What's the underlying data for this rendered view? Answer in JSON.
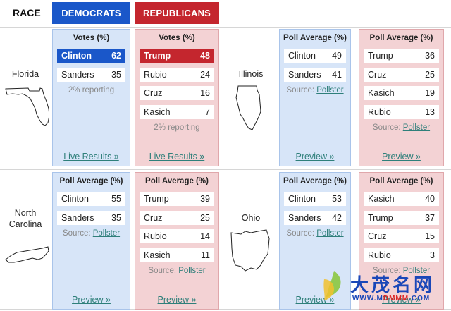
{
  "header": {
    "race": "RACE",
    "democrats": "DEMOCRATS",
    "republicans": "REPUBLICANS"
  },
  "races": {
    "florida": {
      "state": "Florida",
      "dem": {
        "title": "Votes (%)",
        "rows": [
          {
            "name": "Clinton",
            "value": "62"
          },
          {
            "name": "Sanders",
            "value": "35"
          }
        ],
        "note": "2% reporting",
        "link": "Live Results »"
      },
      "rep": {
        "title": "Votes (%)",
        "rows": [
          {
            "name": "Trump",
            "value": "48"
          },
          {
            "name": "Rubio",
            "value": "24"
          },
          {
            "name": "Cruz",
            "value": "16"
          },
          {
            "name": "Kasich",
            "value": "7"
          }
        ],
        "note": "2% reporting",
        "link": "Live Results »"
      }
    },
    "illinois": {
      "state": "Illinois",
      "dem": {
        "title": "Poll Average (%)",
        "rows": [
          {
            "name": "Clinton",
            "value": "49"
          },
          {
            "name": "Sanders",
            "value": "41"
          }
        ],
        "source_prefix": "Source: ",
        "source_link": "Pollster",
        "link": "Preview »"
      },
      "rep": {
        "title": "Poll Average (%)",
        "rows": [
          {
            "name": "Trump",
            "value": "36"
          },
          {
            "name": "Cruz",
            "value": "25"
          },
          {
            "name": "Kasich",
            "value": "19"
          },
          {
            "name": "Rubio",
            "value": "13"
          }
        ],
        "source_prefix": "Source: ",
        "source_link": "Pollster",
        "link": "Preview »"
      }
    },
    "north_carolina": {
      "state_line1": "North",
      "state_line2": "Carolina",
      "dem": {
        "title": "Poll Average (%)",
        "rows": [
          {
            "name": "Clinton",
            "value": "55"
          },
          {
            "name": "Sanders",
            "value": "35"
          }
        ],
        "source_prefix": "Source: ",
        "source_link": "Pollster",
        "link": "Preview »"
      },
      "rep": {
        "title": "Poll Average (%)",
        "rows": [
          {
            "name": "Trump",
            "value": "39"
          },
          {
            "name": "Cruz",
            "value": "25"
          },
          {
            "name": "Rubio",
            "value": "14"
          },
          {
            "name": "Kasich",
            "value": "11"
          }
        ],
        "source_prefix": "Source: ",
        "source_link": "Pollster",
        "link": "Preview »"
      }
    },
    "ohio": {
      "state": "Ohio",
      "dem": {
        "title": "Poll Average (%)",
        "rows": [
          {
            "name": "Clinton",
            "value": "53"
          },
          {
            "name": "Sanders",
            "value": "42"
          }
        ],
        "source_prefix": "Source: ",
        "source_link": "Pollster",
        "link": "Preview »"
      },
      "rep": {
        "title": "Poll Average (%)",
        "rows": [
          {
            "name": "Kasich",
            "value": "40"
          },
          {
            "name": "Trump",
            "value": "37"
          },
          {
            "name": "Cruz",
            "value": "15"
          },
          {
            "name": "Rubio",
            "value": "3"
          }
        ],
        "source_prefix": "Source: ",
        "source_link": "Pollster",
        "link": "Preview »"
      }
    }
  },
  "watermark": {
    "text": "大茂名网",
    "url_pre": "WWW.M",
    "url_red": "DMMM",
    "url_post": ".COM"
  },
  "colors": {
    "democrat_blue": "#1a57c9",
    "republican_red": "#c4262e",
    "link_teal": "#2e7f7a"
  }
}
